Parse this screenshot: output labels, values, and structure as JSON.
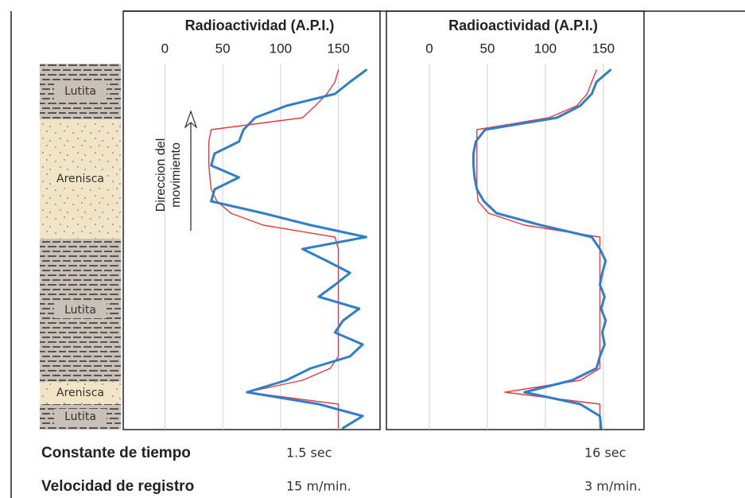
{
  "chart_data": [
    {
      "type": "line",
      "title": "Radioactividad (A.P.I.)",
      "annotation": [
        "Direccion del",
        "movimiento"
      ],
      "time_constant": "1.5 sec",
      "speed": "15 m/min.",
      "xlim": [
        -36,
        186
      ],
      "xticks": [
        0,
        50,
        100,
        150
      ],
      "grid": true,
      "categories": [
        null,
        null,
        null,
        null,
        null,
        null,
        null,
        null,
        null,
        null,
        null,
        null,
        null,
        null,
        null,
        null,
        null,
        null,
        null,
        null,
        null,
        null,
        null,
        null,
        null,
        null,
        null,
        null,
        null,
        null,
        null
      ],
      "series": [
        {
          "color": "#e8383d",
          "values": [
            150,
            147,
            140,
            130,
            119,
            40,
            38,
            38,
            38,
            39,
            40,
            45,
            57,
            85,
            147,
            150,
            150,
            150,
            150,
            150,
            150,
            150,
            150,
            150,
            150,
            143,
            119,
            71,
            150,
            150,
            150
          ]
        },
        {
          "color": "#2f7fc8",
          "values": [
            174,
            160,
            147,
            105,
            78,
            68,
            64,
            43,
            40,
            64,
            43,
            40,
            85,
            126,
            174,
            119,
            140,
            160,
            147,
            133,
            168,
            154,
            147,
            171,
            160,
            126,
            105,
            71,
            133,
            171,
            154
          ]
        }
      ]
    },
    {
      "type": "line",
      "title": "Radioactividad (A.P.I.)",
      "time_constant": "16 sec",
      "speed": "3 m/min.",
      "xlim": [
        -37,
        185
      ],
      "xticks": [
        0,
        50,
        100,
        150
      ],
      "grid": true,
      "categories": [
        null,
        null,
        null,
        null,
        null,
        null,
        null,
        null,
        null,
        null,
        null,
        null,
        null,
        null,
        null,
        null,
        null,
        null,
        null,
        null,
        null,
        null,
        null,
        null,
        null,
        null,
        null,
        null,
        null,
        null,
        null
      ],
      "series": [
        {
          "color": "#e8383d",
          "values": [
            144,
            140,
            136,
            127,
            103,
            41,
            41,
            41,
            41,
            41,
            41,
            42,
            51,
            82,
            147,
            147,
            147,
            147,
            147,
            147,
            147,
            147,
            147,
            147,
            147,
            147,
            130,
            65,
            147,
            147,
            147
          ]
        },
        {
          "color": "#2f7fc8",
          "values": [
            156,
            144,
            140,
            130,
            110,
            48,
            40,
            38,
            38,
            39,
            41,
            47,
            58,
            96,
            140,
            147,
            152,
            149,
            147,
            151,
            148,
            152,
            149,
            151,
            147,
            144,
            123,
            82,
            130,
            147,
            148
          ]
        }
      ]
    }
  ],
  "lithology": [
    "Lutita",
    "Arenisca",
    "Lutita",
    "Arenisca",
    "Lutita"
  ],
  "footer": {
    "time_constant_label": "Constante de tiempo",
    "speed_label": "Velocidad de registro"
  }
}
